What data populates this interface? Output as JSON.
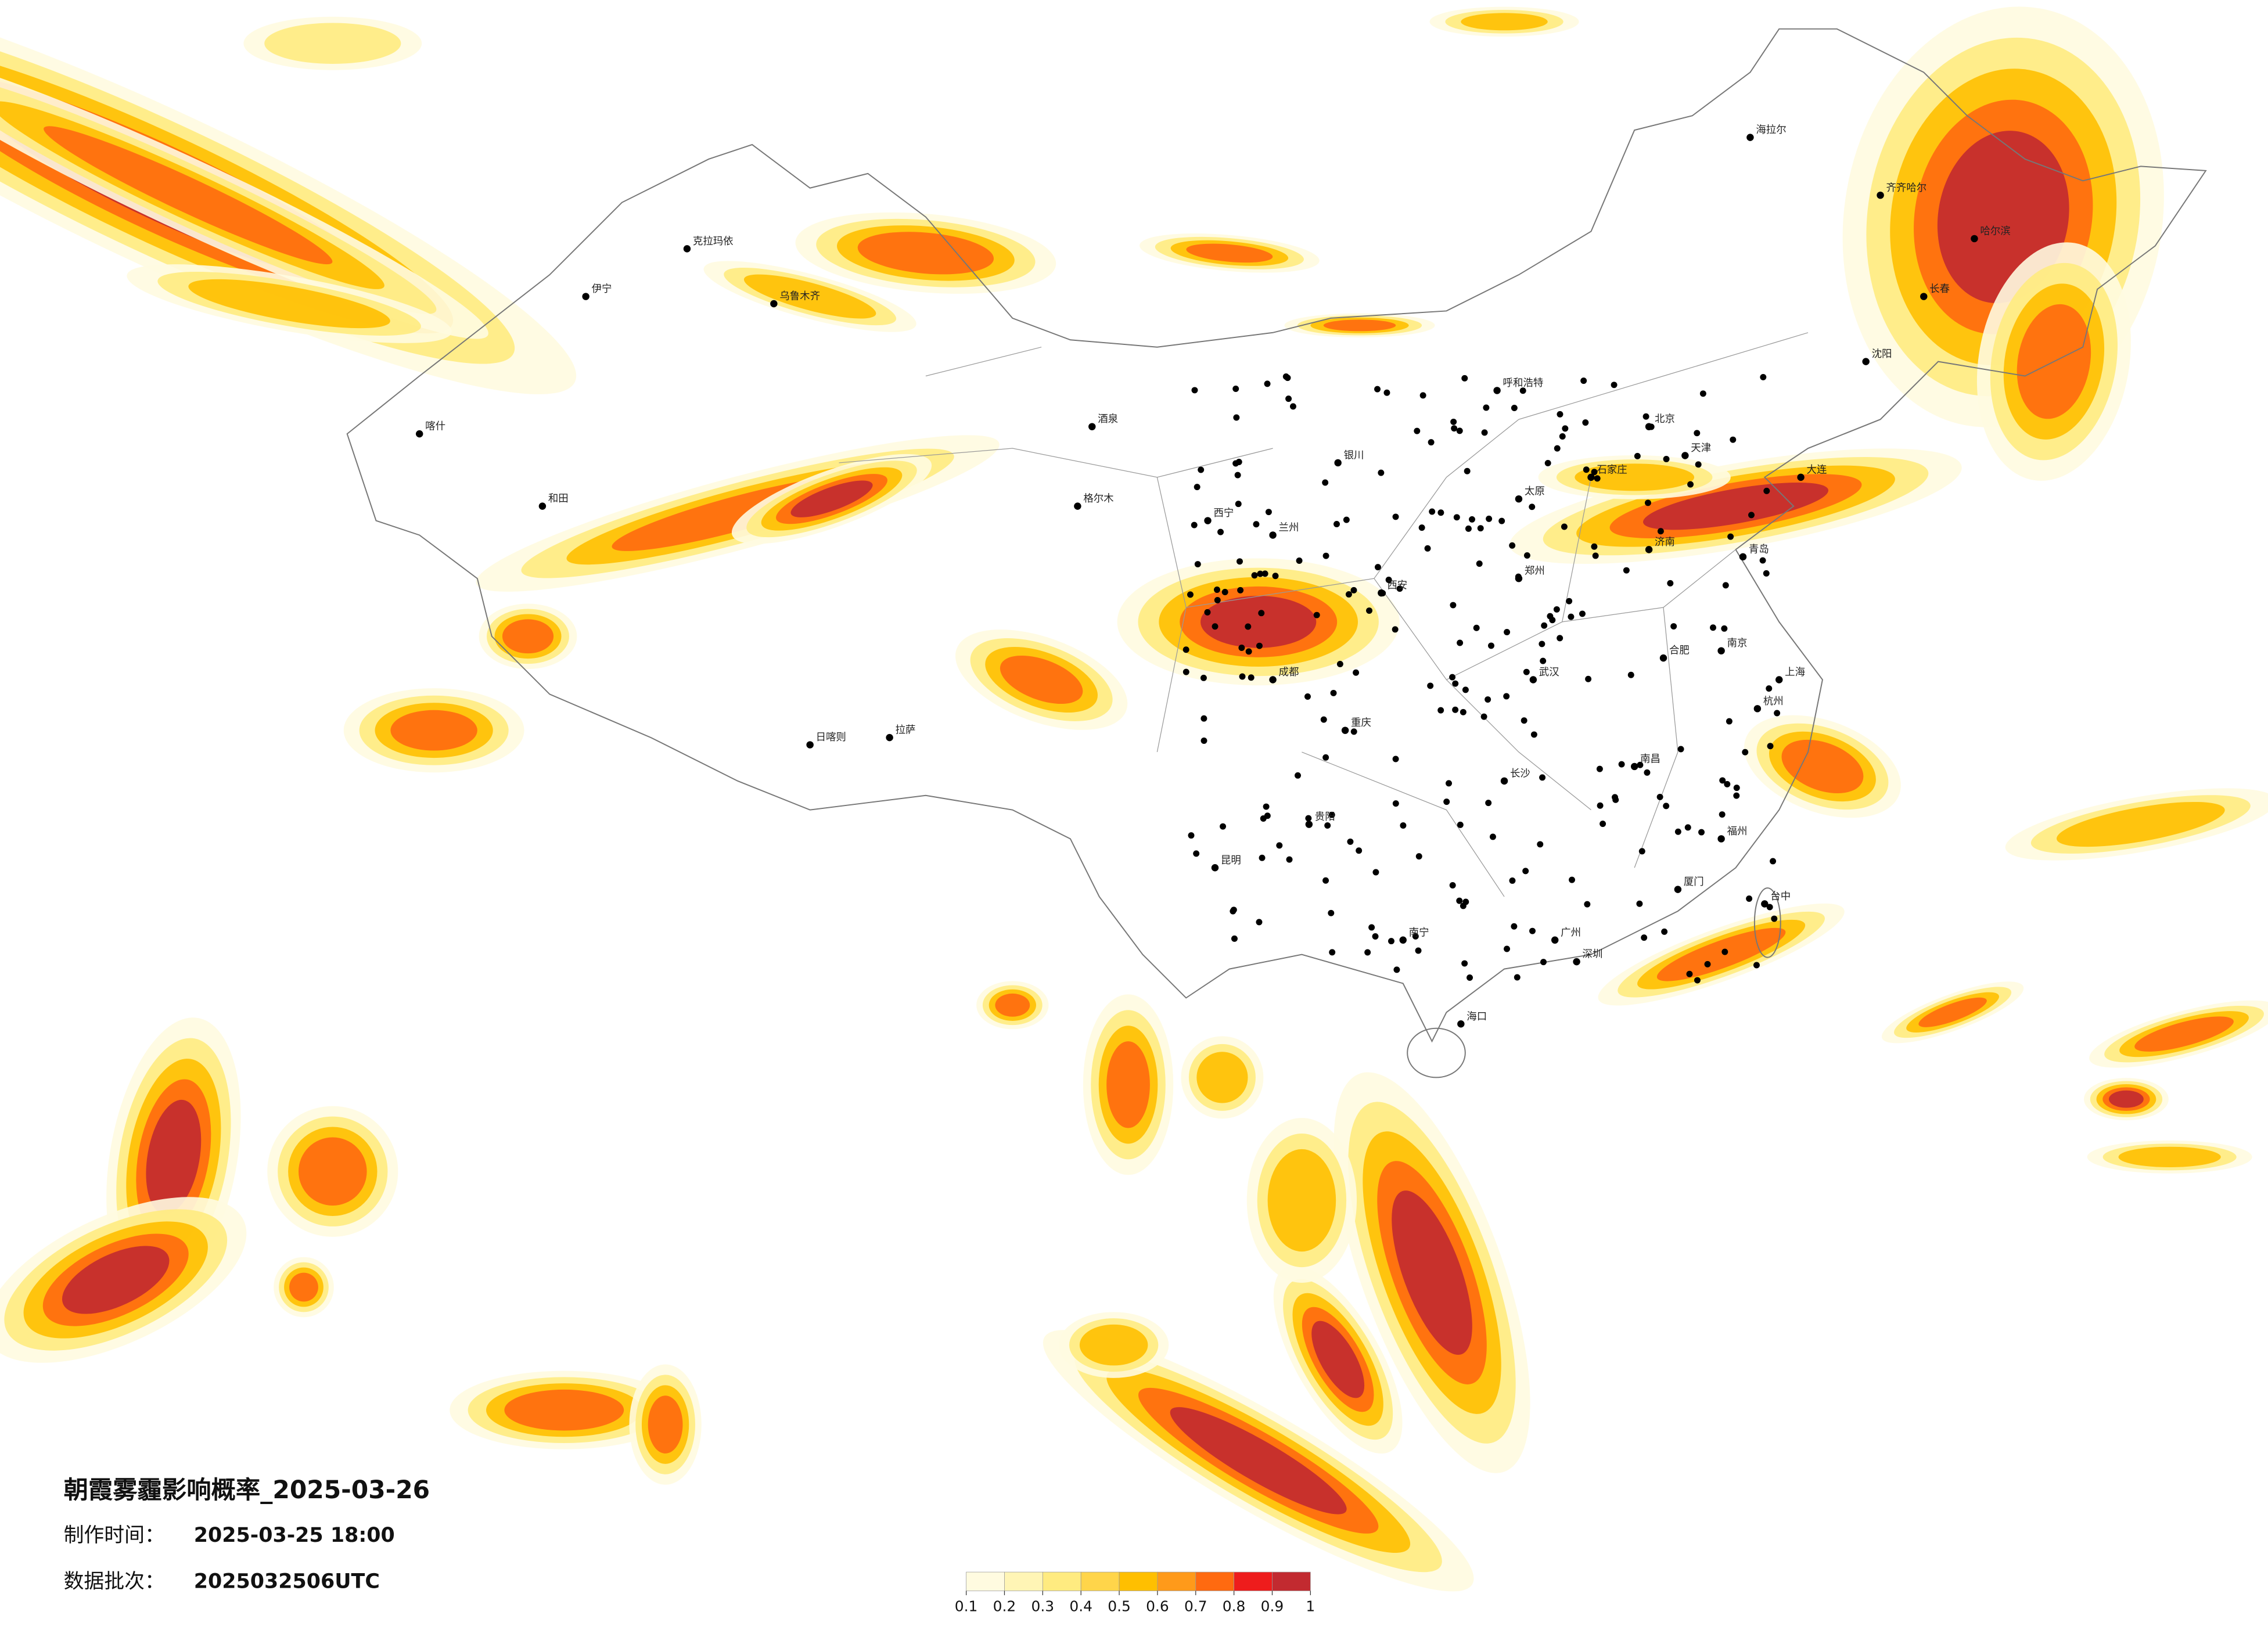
{
  "map": {
    "title": "朝霞雾霾影响概率_2025-03-26",
    "production_time_label": "制作时间：",
    "production_time": "2025-03-25 18:00",
    "data_batch_label": "数据批次：",
    "data_batch": "2025032506UTC",
    "colorbar": {
      "ticks": [
        0.1,
        0.2,
        0.3,
        0.4,
        0.5,
        0.6,
        0.7,
        0.8,
        0.9,
        1
      ],
      "colors": [
        "#fffbe0",
        "#fff5b5",
        "#ffeb80",
        "#ffd54a",
        "#ffbf00",
        "#ff9a1a",
        "#ff6a10",
        "#ee1c1c",
        "#c22a30"
      ]
    },
    "cities": [
      "北京",
      "天津",
      "上海",
      "广州",
      "深圳",
      "重庆",
      "成都",
      "武汉",
      "西安",
      "郑州",
      "南京",
      "杭州",
      "长沙",
      "昆明",
      "贵阳",
      "南宁",
      "兰州",
      "西宁",
      "银川",
      "呼和浩特",
      "哈尔滨",
      "长春",
      "沈阳",
      "济南",
      "石家庄",
      "太原",
      "合肥",
      "福州",
      "南昌",
      "海口",
      "拉萨",
      "乌鲁木齐",
      "喀什",
      "和田",
      "克拉玛依",
      "伊宁",
      "海拉尔",
      "齐齐哈尔",
      "大连",
      "青岛",
      "厦门",
      "日喀则",
      "格尔木",
      "酒泉",
      "台中"
    ]
  }
}
